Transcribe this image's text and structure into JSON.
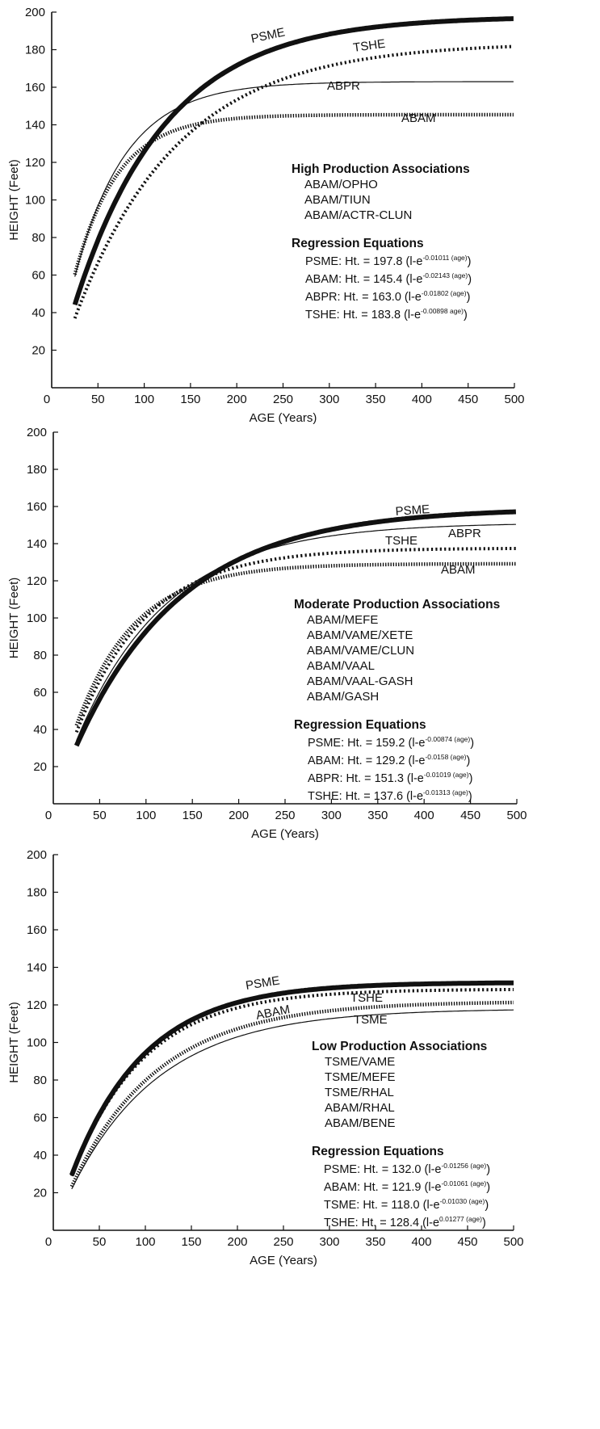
{
  "chart_data": [
    {
      "type": "line",
      "xlabel": "AGE (Years)",
      "ylabel": "HEIGHT (Feet)",
      "xlim": [
        0,
        500
      ],
      "ylim": [
        0,
        200
      ],
      "x_ticks": [
        "0",
        "50",
        "100",
        "150",
        "200",
        "250",
        "300",
        "350",
        "400",
        "450",
        "500"
      ],
      "y_ticks": [
        "20",
        "40",
        "60",
        "80",
        "100",
        "120",
        "140",
        "160",
        "180",
        "200"
      ],
      "grid": false,
      "x_range": [
        25,
        500
      ],
      "series": [
        {
          "name": "PSME",
          "style": "thick",
          "a": 197.8,
          "k": 0.01011
        },
        {
          "name": "TSHE",
          "style": "dotted",
          "a": 183.8,
          "k": 0.00898
        },
        {
          "name": "ABPR",
          "style": "thin",
          "a": 163.0,
          "k": 0.01802
        },
        {
          "name": "ABAM",
          "style": "hatched",
          "a": 145.4,
          "k": 0.02143
        }
      ],
      "associations_title": "High Production Associations",
      "associations": [
        "ABAM/OPHO",
        "ABAM/TIUN",
        "ABAM/ACTR-CLUN"
      ],
      "equations_title": "Regression Equations",
      "equations": [
        {
          "prefix": "PSME: Ht. = 197.8 (l-e",
          "exponent": "-0.01011 (age)",
          "suffix": ")"
        },
        {
          "prefix": "ABAM: Ht. = 145.4 (l-e",
          "exponent": "-0.02143 (age)",
          "suffix": ")"
        },
        {
          "prefix": "ABPR: Ht. = 163.0 (l-e",
          "exponent": "-0.01802 (age)",
          "suffix": ")"
        },
        {
          "prefix": "TSHE: Ht. = 183.8 (l-e",
          "exponent": "-0.00898 age)",
          "suffix": ")"
        }
      ]
    },
    {
      "type": "line",
      "xlabel": "AGE (Years)",
      "ylabel": "HEIGHT (Feet)",
      "xlim": [
        0,
        500
      ],
      "ylim": [
        0,
        200
      ],
      "x_ticks": [
        "0",
        "50",
        "100",
        "150",
        "200",
        "250",
        "300",
        "350",
        "400",
        "450",
        "500"
      ],
      "y_ticks": [
        "20",
        "40",
        "60",
        "80",
        "100",
        "120",
        "140",
        "160",
        "180",
        "200"
      ],
      "grid": false,
      "x_range": [
        25,
        500
      ],
      "series": [
        {
          "name": "PSME",
          "style": "thick",
          "a": 159.2,
          "k": 0.00874
        },
        {
          "name": "ABPR",
          "style": "thin",
          "a": 151.3,
          "k": 0.01019
        },
        {
          "name": "TSHE",
          "style": "dotted",
          "a": 137.6,
          "k": 0.01313
        },
        {
          "name": "ABAM",
          "style": "hatched",
          "a": 129.2,
          "k": 0.0158
        }
      ],
      "associations_title": "Moderate Production Associations",
      "associations": [
        "ABAM/MEFE",
        "ABAM/VAME/XETE",
        "ABAM/VAME/CLUN",
        "ABAM/VAAL",
        "ABAM/VAAL-GASH",
        "ABAM/GASH"
      ],
      "equations_title": "Regression Equations",
      "equations": [
        {
          "prefix": "PSME: Ht. = 159.2 (l-e",
          "exponent": "-0.00874 (age)",
          "suffix": ")"
        },
        {
          "prefix": "ABAM: Ht. = 129.2 (l-e",
          "exponent": "-0.0158 (age)",
          "suffix": ")"
        },
        {
          "prefix": "ABPR: Ht. = 151.3 (l-e",
          "exponent": "-0.01019 (age)",
          "suffix": ")"
        },
        {
          "prefix": "TSHE: Ht. = 137.6 (l-e",
          "exponent": "-0.01313 (age)",
          "suffix": ")"
        }
      ]
    },
    {
      "type": "line",
      "xlabel": "AGE (Years)",
      "ylabel": "HEIGHT (Feet)",
      "xlim": [
        0,
        500
      ],
      "ylim": [
        0,
        200
      ],
      "x_ticks": [
        "0",
        "50",
        "100",
        "150",
        "200",
        "250",
        "300",
        "350",
        "400",
        "450",
        "500"
      ],
      "y_ticks": [
        "20",
        "40",
        "60",
        "80",
        "100",
        "120",
        "140",
        "160",
        "180",
        "200"
      ],
      "grid": false,
      "x_range": [
        20,
        500
      ],
      "series": [
        {
          "name": "PSME",
          "style": "thick",
          "a": 132.0,
          "k": 0.01256
        },
        {
          "name": "TSHE",
          "style": "dotted",
          "a": 128.4,
          "k": 0.01277
        },
        {
          "name": "ABAM",
          "style": "hatched",
          "a": 121.9,
          "k": 0.01061
        },
        {
          "name": "TSME",
          "style": "thin",
          "a": 118.0,
          "k": 0.0103
        }
      ],
      "associations_title": "Low Production Associations",
      "associations": [
        "TSME/VAME",
        "TSME/MEFE",
        "TSME/RHAL",
        "ABAM/RHAL",
        "ABAM/BENE"
      ],
      "equations_title": "Regression Equations",
      "equations": [
        {
          "prefix": "PSME: Ht. = 132.0 (l-e",
          "exponent": "-0.01256 (age)",
          "suffix": ")"
        },
        {
          "prefix": "ABAM: Ht. = 121.9 (l-e",
          "exponent": "-0.01061 (age)",
          "suffix": ")"
        },
        {
          "prefix": "TSME: Ht. = 118.0 (l-e",
          "exponent": "-0.01030 (age)",
          "suffix": ")"
        },
        {
          "prefix": "TSHE: Ht. = 128.4 (l-e",
          "exponent": "0.01277 (age)",
          "suffix": ")"
        }
      ]
    }
  ]
}
